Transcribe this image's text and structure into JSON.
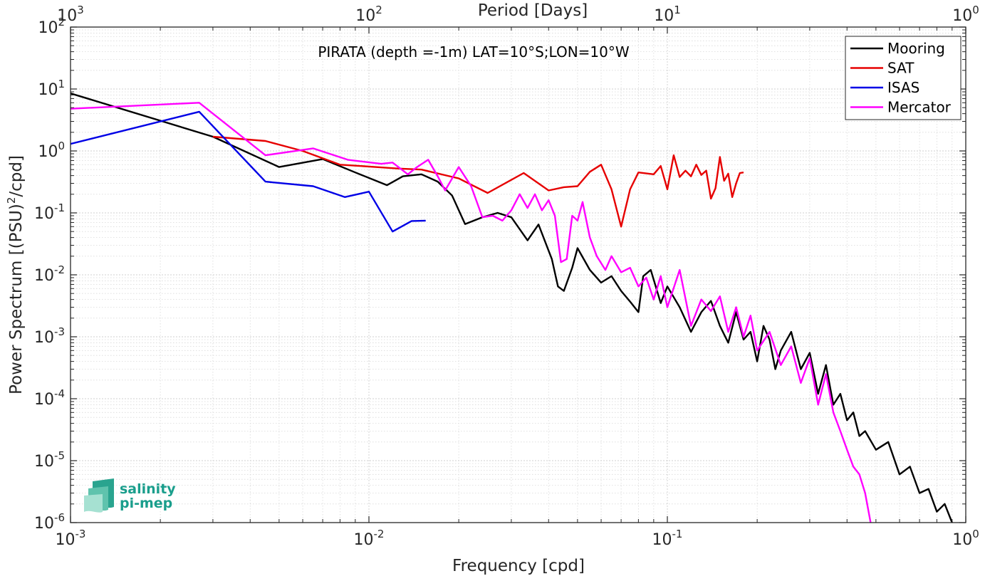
{
  "chart_data": {
    "type": "line",
    "title": "PIRATA (depth =-1m) LAT=10°S;LON=10°W",
    "xlabel": "Frequency [cpd]",
    "ylabel_main": "Power Spectrum [(PSU)",
    "ylabel_sup": "2",
    "ylabel_tail": "/cpd]",
    "top_xlabel": "Period [Days]",
    "xscale": "log",
    "yscale": "log",
    "xlim": [
      0.001,
      1
    ],
    "ylim": [
      1e-06,
      100
    ],
    "grid": true,
    "legend_position": "top-right",
    "x_ticks": [
      {
        "value": 0.001,
        "base": "10",
        "exp": "-3"
      },
      {
        "value": 0.01,
        "base": "10",
        "exp": "-2"
      },
      {
        "value": 0.1,
        "base": "10",
        "exp": "-1"
      },
      {
        "value": 1,
        "base": "10",
        "exp": "0"
      }
    ],
    "top_ticks": [
      {
        "value": 0.001,
        "base": "10",
        "exp": "3"
      },
      {
        "value": 0.01,
        "base": "10",
        "exp": "2"
      },
      {
        "value": 0.1,
        "base": "10",
        "exp": "1"
      },
      {
        "value": 1,
        "base": "10",
        "exp": "0"
      }
    ],
    "y_ticks": [
      {
        "value": 100,
        "base": "10",
        "exp": "2"
      },
      {
        "value": 10,
        "base": "10",
        "exp": "1"
      },
      {
        "value": 1,
        "base": "10",
        "exp": "0"
      },
      {
        "value": 0.1,
        "base": "10",
        "exp": "-1"
      },
      {
        "value": 0.01,
        "base": "10",
        "exp": "-2"
      },
      {
        "value": 0.001,
        "base": "10",
        "exp": "-3"
      },
      {
        "value": 0.0001,
        "base": "10",
        "exp": "-4"
      },
      {
        "value": 1e-05,
        "base": "10",
        "exp": "-5"
      },
      {
        "value": 1e-06,
        "base": "10",
        "exp": "-6"
      }
    ],
    "series": [
      {
        "name": "Mooring",
        "color": "#000000",
        "points": [
          [
            0.001,
            8.5
          ],
          [
            0.003,
            1.7
          ],
          [
            0.005,
            0.55
          ],
          [
            0.007,
            0.74
          ],
          [
            0.009,
            0.45
          ],
          [
            0.0115,
            0.28
          ],
          [
            0.013,
            0.39
          ],
          [
            0.015,
            0.42
          ],
          [
            0.017,
            0.32
          ],
          [
            0.019,
            0.19
          ],
          [
            0.021,
            0.066
          ],
          [
            0.024,
            0.085
          ],
          [
            0.027,
            0.1
          ],
          [
            0.03,
            0.085
          ],
          [
            0.034,
            0.036
          ],
          [
            0.037,
            0.065
          ],
          [
            0.041,
            0.018
          ],
          [
            0.043,
            0.0065
          ],
          [
            0.045,
            0.0055
          ],
          [
            0.048,
            0.013
          ],
          [
            0.05,
            0.027
          ],
          [
            0.055,
            0.012
          ],
          [
            0.06,
            0.0075
          ],
          [
            0.065,
            0.0095
          ],
          [
            0.07,
            0.0055
          ],
          [
            0.075,
            0.0037
          ],
          [
            0.08,
            0.0025
          ],
          [
            0.083,
            0.0095
          ],
          [
            0.088,
            0.012
          ],
          [
            0.095,
            0.0035
          ],
          [
            0.1,
            0.0065
          ],
          [
            0.11,
            0.003
          ],
          [
            0.12,
            0.0012
          ],
          [
            0.13,
            0.0025
          ],
          [
            0.14,
            0.0038
          ],
          [
            0.15,
            0.0015
          ],
          [
            0.16,
            0.0008
          ],
          [
            0.17,
            0.0025
          ],
          [
            0.18,
            0.0009
          ],
          [
            0.19,
            0.0012
          ],
          [
            0.2,
            0.0004
          ],
          [
            0.21,
            0.0015
          ],
          [
            0.22,
            0.0009
          ],
          [
            0.23,
            0.0003
          ],
          [
            0.24,
            0.0006
          ],
          [
            0.26,
            0.0012
          ],
          [
            0.28,
            0.0003
          ],
          [
            0.3,
            0.00055
          ],
          [
            0.32,
            0.00012
          ],
          [
            0.34,
            0.00035
          ],
          [
            0.36,
            8e-05
          ],
          [
            0.38,
            0.00012
          ],
          [
            0.4,
            4.5e-05
          ],
          [
            0.42,
            6e-05
          ],
          [
            0.44,
            2.5e-05
          ],
          [
            0.46,
            3e-05
          ],
          [
            0.5,
            1.5e-05
          ],
          [
            0.55,
            2e-05
          ],
          [
            0.6,
            6e-06
          ],
          [
            0.65,
            8e-06
          ],
          [
            0.7,
            3e-06
          ],
          [
            0.75,
            3.5e-06
          ],
          [
            0.8,
            1.5e-06
          ],
          [
            0.85,
            2e-06
          ],
          [
            0.9,
            1e-06
          ]
        ]
      },
      {
        "name": "SAT",
        "color": "#e60000",
        "points": [
          [
            0.003,
            1.7
          ],
          [
            0.0045,
            1.45
          ],
          [
            0.006,
            1.0
          ],
          [
            0.008,
            0.6
          ],
          [
            0.01,
            0.56
          ],
          [
            0.0125,
            0.52
          ],
          [
            0.015,
            0.5
          ],
          [
            0.02,
            0.36
          ],
          [
            0.025,
            0.21
          ],
          [
            0.033,
            0.44
          ],
          [
            0.04,
            0.23
          ],
          [
            0.045,
            0.26
          ],
          [
            0.05,
            0.27
          ],
          [
            0.055,
            0.46
          ],
          [
            0.06,
            0.6
          ],
          [
            0.065,
            0.24
          ],
          [
            0.07,
            0.06
          ],
          [
            0.075,
            0.24
          ],
          [
            0.08,
            0.45
          ],
          [
            0.09,
            0.42
          ],
          [
            0.095,
            0.57
          ],
          [
            0.1,
            0.24
          ],
          [
            0.105,
            0.85
          ],
          [
            0.11,
            0.38
          ],
          [
            0.115,
            0.48
          ],
          [
            0.12,
            0.39
          ],
          [
            0.125,
            0.6
          ],
          [
            0.13,
            0.41
          ],
          [
            0.135,
            0.48
          ],
          [
            0.14,
            0.17
          ],
          [
            0.145,
            0.25
          ],
          [
            0.15,
            0.8
          ],
          [
            0.155,
            0.33
          ],
          [
            0.16,
            0.43
          ],
          [
            0.165,
            0.18
          ],
          [
            0.17,
            0.3
          ],
          [
            0.175,
            0.44
          ],
          [
            0.18,
            0.45
          ]
        ]
      },
      {
        "name": "ISAS",
        "color": "#0000e6",
        "points": [
          [
            0.001,
            1.3
          ],
          [
            0.0027,
            4.3
          ],
          [
            0.0045,
            0.32
          ],
          [
            0.0065,
            0.27
          ],
          [
            0.0083,
            0.18
          ],
          [
            0.01,
            0.22
          ],
          [
            0.012,
            0.05
          ],
          [
            0.0139,
            0.074
          ],
          [
            0.0155,
            0.075
          ]
        ]
      },
      {
        "name": "Mercator",
        "color": "#ff00ff",
        "points": [
          [
            0.001,
            4.8
          ],
          [
            0.0027,
            6.0
          ],
          [
            0.0045,
            0.85
          ],
          [
            0.0065,
            1.1
          ],
          [
            0.0085,
            0.72
          ],
          [
            0.011,
            0.62
          ],
          [
            0.012,
            0.65
          ],
          [
            0.0135,
            0.42
          ],
          [
            0.0145,
            0.55
          ],
          [
            0.0158,
            0.72
          ],
          [
            0.017,
            0.39
          ],
          [
            0.018,
            0.23
          ],
          [
            0.02,
            0.55
          ],
          [
            0.022,
            0.27
          ],
          [
            0.024,
            0.085
          ],
          [
            0.026,
            0.09
          ],
          [
            0.028,
            0.075
          ],
          [
            0.03,
            0.11
          ],
          [
            0.032,
            0.2
          ],
          [
            0.034,
            0.12
          ],
          [
            0.036,
            0.2
          ],
          [
            0.038,
            0.11
          ],
          [
            0.04,
            0.16
          ],
          [
            0.042,
            0.09
          ],
          [
            0.044,
            0.016
          ],
          [
            0.046,
            0.018
          ],
          [
            0.048,
            0.09
          ],
          [
            0.05,
            0.075
          ],
          [
            0.052,
            0.15
          ],
          [
            0.055,
            0.04
          ],
          [
            0.058,
            0.02
          ],
          [
            0.062,
            0.012
          ],
          [
            0.065,
            0.02
          ],
          [
            0.07,
            0.011
          ],
          [
            0.075,
            0.013
          ],
          [
            0.08,
            0.0065
          ],
          [
            0.085,
            0.009
          ],
          [
            0.09,
            0.004
          ],
          [
            0.095,
            0.0095
          ],
          [
            0.1,
            0.003
          ],
          [
            0.11,
            0.012
          ],
          [
            0.12,
            0.0015
          ],
          [
            0.13,
            0.004
          ],
          [
            0.14,
            0.0026
          ],
          [
            0.15,
            0.0045
          ],
          [
            0.16,
            0.0012
          ],
          [
            0.17,
            0.003
          ],
          [
            0.18,
            0.001
          ],
          [
            0.19,
            0.0022
          ],
          [
            0.2,
            0.0006
          ],
          [
            0.22,
            0.0012
          ],
          [
            0.24,
            0.00035
          ],
          [
            0.26,
            0.0007
          ],
          [
            0.28,
            0.00018
          ],
          [
            0.3,
            0.00045
          ],
          [
            0.32,
            8e-05
          ],
          [
            0.34,
            0.00025
          ],
          [
            0.36,
            6e-05
          ],
          [
            0.38,
            3e-05
          ],
          [
            0.4,
            1.5e-05
          ],
          [
            0.42,
            8e-06
          ],
          [
            0.44,
            6e-06
          ],
          [
            0.46,
            3e-06
          ],
          [
            0.48,
            1e-06
          ]
        ]
      }
    ]
  },
  "logo": {
    "line1": "salinity",
    "line2": "pi-mep"
  }
}
